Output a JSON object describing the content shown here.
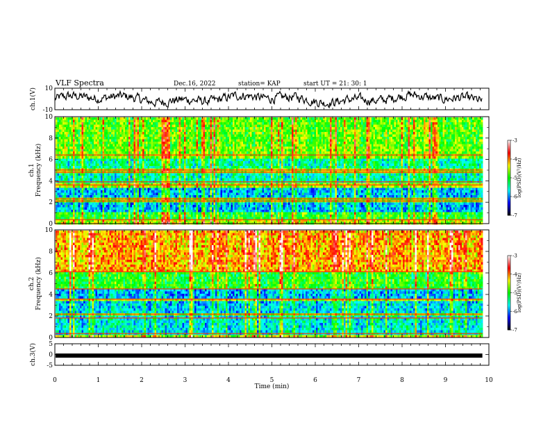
{
  "header": {
    "title": "VLF Spectra",
    "date": "Dec.16, 2022",
    "station": "station= KAP",
    "start": "start  UT =   21: 30: 1"
  },
  "chart_data": [
    {
      "type": "line",
      "name": "ch1-waveform",
      "ylabel": "ch.1(V)",
      "ylim": [
        -10,
        10
      ],
      "yticks": [
        "10",
        "-10"
      ],
      "xlim": [
        0,
        10
      ],
      "x_end": 9.85,
      "note_values": "amplitude trace fluctuating around 0 V (approx range -7..7)"
    },
    {
      "type": "heatmap",
      "name": "ch1-spectrogram",
      "ylabel_top": "ch.1",
      "ylabel": "Frequency (kHz)",
      "ylim": [
        0,
        10
      ],
      "yticks": [
        "0",
        "2",
        "4",
        "6",
        "8",
        "10"
      ],
      "xlim": [
        0,
        10
      ],
      "x_end": 9.85,
      "bands_log_psd": [
        {
          "f": [
            0.0,
            0.3
          ],
          "v": -4.5
        },
        {
          "f": [
            0.3,
            1.0
          ],
          "v": -5.0
        },
        {
          "f": [
            1.0,
            2.0
          ],
          "v": -5.8
        },
        {
          "f": [
            2.0,
            2.4
          ],
          "v": -4.8
        },
        {
          "f": [
            2.4,
            3.4
          ],
          "v": -5.8
        },
        {
          "f": [
            3.4,
            3.8
          ],
          "v": -4.6
        },
        {
          "f": [
            3.8,
            4.8
          ],
          "v": -5.5
        },
        {
          "f": [
            4.8,
            5.2
          ],
          "v": -4.6
        },
        {
          "f": [
            5.2,
            6.0
          ],
          "v": -5.4
        },
        {
          "f": [
            6.0,
            7.2
          ],
          "v": -4.7
        },
        {
          "f": [
            7.2,
            10.0
          ],
          "v": -4.8
        }
      ],
      "colorbar": {
        "label": "log(PSD)(V²/Hz)",
        "range": [
          -7,
          -3
        ],
        "ticks": [
          "-3",
          "-4",
          "-5",
          "-6",
          "-7"
        ]
      }
    },
    {
      "type": "heatmap",
      "name": "ch2-spectrogram",
      "ylabel_top": "ch.2",
      "ylabel": "Frequency (kHz)",
      "ylim": [
        0,
        10
      ],
      "yticks": [
        "0",
        "2",
        "4",
        "6",
        "8",
        "10"
      ],
      "xlim": [
        0,
        10
      ],
      "x_end": 9.85,
      "bands_log_psd": [
        {
          "f": [
            0.0,
            0.3
          ],
          "v": -4.5
        },
        {
          "f": [
            0.3,
            2.0
          ],
          "v": -5.6
        },
        {
          "f": [
            2.0,
            2.3
          ],
          "v": -4.8
        },
        {
          "f": [
            2.3,
            3.5
          ],
          "v": -5.7
        },
        {
          "f": [
            3.5,
            3.7
          ],
          "v": -4.5
        },
        {
          "f": [
            3.7,
            4.6
          ],
          "v": -5.8
        },
        {
          "f": [
            4.6,
            6.2
          ],
          "v": -5.0
        },
        {
          "f": [
            6.2,
            10.0
          ],
          "v": -4.1
        }
      ],
      "colorbar": {
        "label": "log(PSD)(V²/Hz)",
        "range": [
          -7,
          -3
        ],
        "ticks": [
          "-3",
          "-4",
          "-5",
          "-6",
          "-7"
        ]
      }
    },
    {
      "type": "line",
      "name": "ch3-waveform",
      "ylabel": "ch.3(V)",
      "ylim": [
        -5,
        5
      ],
      "yticks": [
        "5",
        "0",
        "-5"
      ],
      "xlim": [
        0,
        10
      ],
      "x_end": 9.85,
      "level": -0.5
    }
  ],
  "xaxis": {
    "label": "Time (min)",
    "ticks": [
      "0",
      "1",
      "2",
      "3",
      "4",
      "5",
      "6",
      "7",
      "8",
      "9",
      "10"
    ]
  },
  "colors": {
    "cmap": [
      "#000000",
      "#0000ff",
      "#00ffff",
      "#00ff00",
      "#ffff00",
      "#ff0000",
      "#ffffff"
    ]
  }
}
